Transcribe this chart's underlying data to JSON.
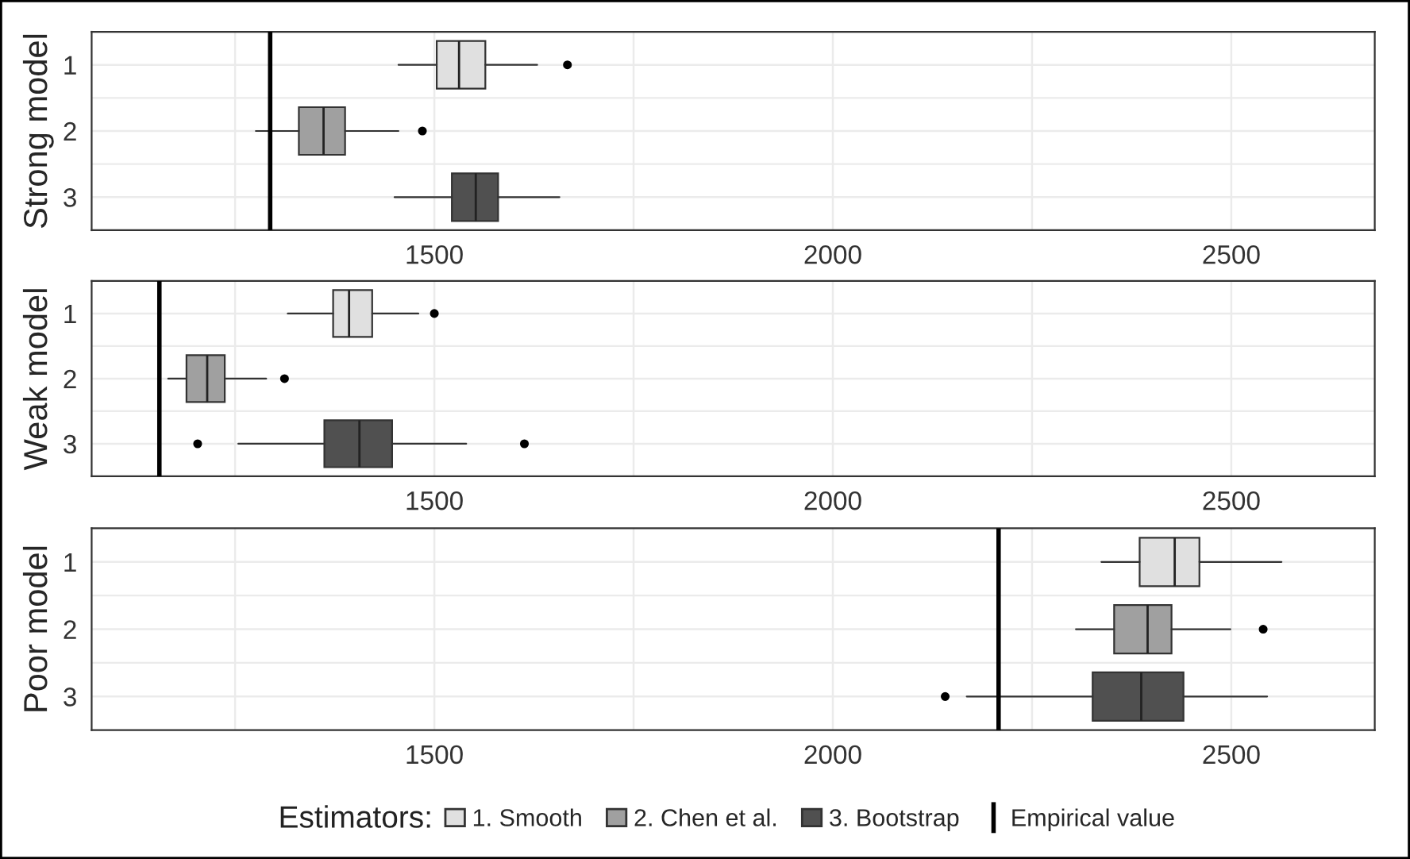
{
  "chart_data": [
    {
      "type": "box",
      "orientation": "horizontal",
      "ylabel": "Strong model",
      "categories": [
        "1",
        "2",
        "3"
      ],
      "xlim": [
        1070,
        2680
      ],
      "xticks": [
        {
          "value": 1250,
          "label": null
        },
        1500,
        {
          "value": 1750,
          "label": null
        },
        2000,
        {
          "value": 2250,
          "label": null
        },
        2500
      ],
      "grid": true,
      "legend": false,
      "series": [
        {
          "color": "#e0e0e0",
          "boxes": [
            {
              "low": 1455,
              "q1": 1503,
              "median": 1531,
              "q3": 1564,
              "high": 1629,
              "outliers": [
                1667
              ]
            },
            null,
            null
          ]
        },
        {
          "color": "#a0a0a0",
          "boxes": [
            null,
            {
              "low": 1276,
              "q1": 1330,
              "median": 1361,
              "q3": 1388,
              "high": 1455,
              "outliers": [
                1485
              ]
            },
            null
          ]
        },
        {
          "color": "#505050",
          "boxes": [
            null,
            null,
            {
              "low": 1450,
              "q1": 1522,
              "median": 1552,
              "q3": 1580,
              "high": 1657
            }
          ]
        }
      ],
      "ref_lines": [
        {
          "axis": "x",
          "value": 1294,
          "color": "#000000"
        }
      ]
    },
    {
      "type": "box",
      "orientation": "horizontal",
      "ylabel": "Weak model",
      "categories": [
        "1",
        "2",
        "3"
      ],
      "xlim": [
        1070,
        2680
      ],
      "xticks": [
        {
          "value": 1250,
          "label": null
        },
        1500,
        {
          "value": 1750,
          "label": null
        },
        2000,
        {
          "value": 2250,
          "label": null
        },
        2500
      ],
      "grid": true,
      "legend": false,
      "series": [
        {
          "color": "#e0e0e0",
          "boxes": [
            {
              "low": 1316,
              "q1": 1373,
              "median": 1393,
              "q3": 1422,
              "high": 1480,
              "outliers": [
                1500
              ]
            },
            null,
            null
          ]
        },
        {
          "color": "#a0a0a0",
          "boxes": [
            null,
            {
              "low": 1166,
              "q1": 1189,
              "median": 1215,
              "q3": 1237,
              "high": 1289,
              "outliers": [
                1312
              ]
            },
            null
          ]
        },
        {
          "color": "#505050",
          "boxes": [
            null,
            null,
            {
              "low": 1254,
              "q1": 1362,
              "median": 1406,
              "q3": 1447,
              "high": 1540,
              "outliers": [
                1203,
                1613
              ]
            }
          ]
        }
      ],
      "ref_lines": [
        {
          "axis": "x",
          "value": 1155,
          "color": "#000000"
        }
      ]
    },
    {
      "type": "box",
      "orientation": "horizontal",
      "ylabel": "Poor model",
      "categories": [
        "1",
        "2",
        "3"
      ],
      "xlim": [
        1070,
        2680
      ],
      "xticks": [
        {
          "value": 1250,
          "label": null
        },
        1500,
        {
          "value": 1750,
          "label": null
        },
        2000,
        {
          "value": 2250,
          "label": null
        },
        2500
      ],
      "grid": true,
      "legend": "bottom",
      "legend_title": "Estimators:",
      "series": [
        {
          "name": "1. Smooth",
          "color": "#e0e0e0",
          "boxes": [
            {
              "low": 2337,
              "q1": 2385,
              "median": 2429,
              "q3": 2460,
              "high": 2563
            },
            null,
            null
          ]
        },
        {
          "name": "2. Chen et al.",
          "color": "#a0a0a0",
          "boxes": [
            null,
            {
              "low": 2305,
              "q1": 2353,
              "median": 2395,
              "q3": 2425,
              "high": 2499,
              "outliers": [
                2540
              ]
            },
            null
          ]
        },
        {
          "name": "3. Bootstrap",
          "color": "#505050",
          "boxes": [
            null,
            null,
            {
              "low": 2168,
              "q1": 2326,
              "median": 2387,
              "q3": 2440,
              "high": 2545,
              "outliers": [
                2141
              ]
            }
          ]
        }
      ],
      "ref_lines": [
        {
          "axis": "x",
          "value": 2208,
          "label": "Empirical value",
          "color": "#000000"
        }
      ]
    }
  ]
}
